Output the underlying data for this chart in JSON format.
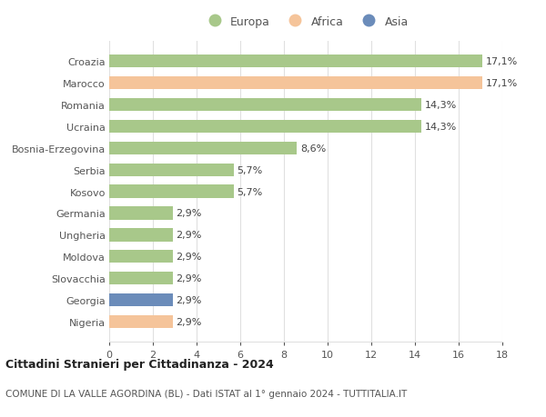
{
  "categories": [
    "Croazia",
    "Marocco",
    "Romania",
    "Ucraina",
    "Bosnia-Erzegovina",
    "Serbia",
    "Kosovo",
    "Germania",
    "Ungheria",
    "Moldova",
    "Slovacchia",
    "Georgia",
    "Nigeria"
  ],
  "values": [
    17.1,
    17.1,
    14.3,
    14.3,
    8.6,
    5.7,
    5.7,
    2.9,
    2.9,
    2.9,
    2.9,
    2.9,
    2.9
  ],
  "labels": [
    "17,1%",
    "17,1%",
    "14,3%",
    "14,3%",
    "8,6%",
    "5,7%",
    "5,7%",
    "2,9%",
    "2,9%",
    "2,9%",
    "2,9%",
    "2,9%",
    "2,9%"
  ],
  "continent": [
    "Europa",
    "Africa",
    "Europa",
    "Europa",
    "Europa",
    "Europa",
    "Europa",
    "Europa",
    "Europa",
    "Europa",
    "Europa",
    "Asia",
    "Africa"
  ],
  "colors": {
    "Europa": "#a8c88a",
    "Africa": "#f5c49a",
    "Asia": "#6b8cba"
  },
  "xlim": [
    0,
    18
  ],
  "xticks": [
    0,
    2,
    4,
    6,
    8,
    10,
    12,
    14,
    16,
    18
  ],
  "title": "Cittadini Stranieri per Cittadinanza - 2024",
  "subtitle": "COMUNE DI LA VALLE AGORDINA (BL) - Dati ISTAT al 1° gennaio 2024 - TUTTITALIA.IT",
  "background_color": "#ffffff",
  "grid_color": "#e0e0e0",
  "bar_height": 0.6,
  "label_fontsize": 8,
  "ytick_fontsize": 8,
  "xtick_fontsize": 8
}
